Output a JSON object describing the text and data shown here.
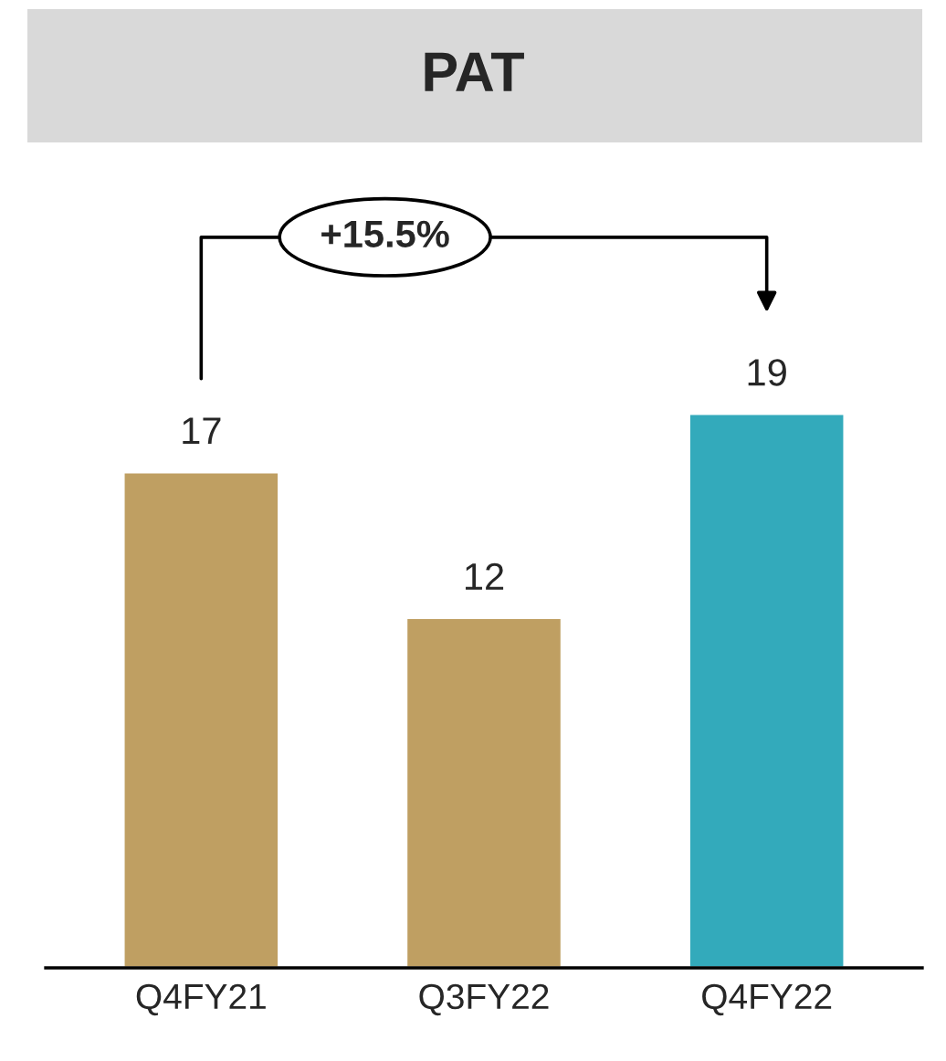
{
  "chart_data": {
    "type": "bar",
    "title": "PAT",
    "categories": [
      "Q4FY21",
      "Q3FY22",
      "Q4FY22"
    ],
    "values": [
      17,
      12,
      19
    ],
    "colors": [
      "#bf9f62",
      "#bf9f62",
      "#33aabb"
    ],
    "tick_labels": "x",
    "data_labels": true,
    "annotations": [
      "+15.5%"
    ]
  }
}
